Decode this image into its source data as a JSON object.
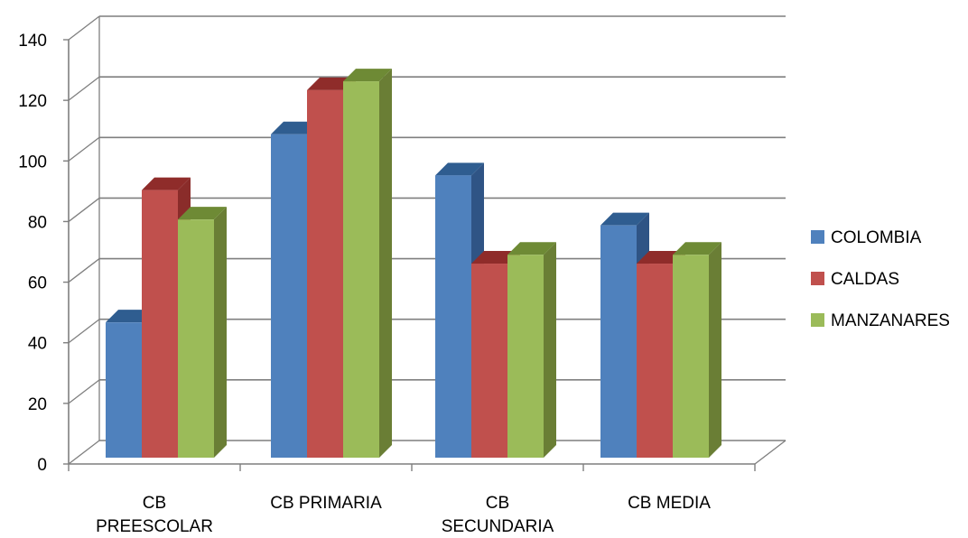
{
  "chart_data": {
    "type": "bar",
    "categories": [
      "CB PREESCOLAR",
      "CB PRIMARIA",
      "CB SECUNDARIA",
      "CB MEDIA"
    ],
    "category_label_lines": [
      [
        "CB",
        "PREESCOLAR"
      ],
      [
        "CB PRIMARIA"
      ],
      [
        "CB",
        "SECUNDARIA"
      ],
      [
        "CB MEDIA"
      ]
    ],
    "series": [
      {
        "name": "COLOMBIA",
        "values": [
          46,
          110,
          96,
          79
        ],
        "color": "#4F81BD",
        "top_color": "#2F5D90",
        "side_color": "#2F5485"
      },
      {
        "name": "CALDAS",
        "values": [
          91,
          125,
          66,
          66
        ],
        "color": "#C0504D",
        "top_color": "#8F2C2A",
        "side_color": "#8A2C2A"
      },
      {
        "name": "MANZANARES",
        "values": [
          81,
          128,
          69,
          69
        ],
        "color": "#9BBB59",
        "top_color": "#6E8A35",
        "side_color": "#6A7E35"
      }
    ],
    "yticks": [
      0,
      20,
      40,
      60,
      80,
      100,
      120,
      140
    ],
    "ylim": [
      0,
      140
    ],
    "title": "",
    "xlabel": "",
    "ylabel": "",
    "grid": true,
    "legend_position": "right",
    "style": "3d-clustered-column"
  }
}
